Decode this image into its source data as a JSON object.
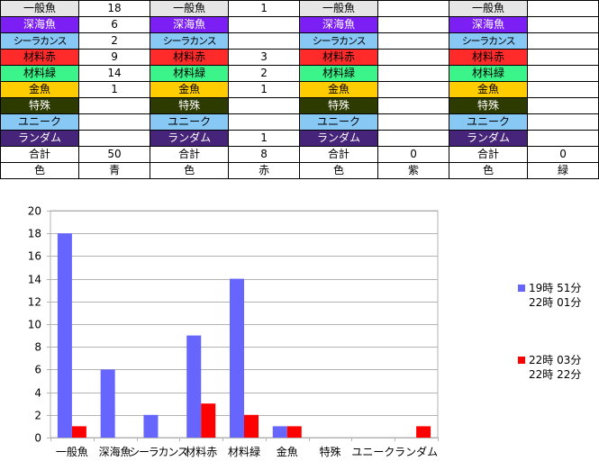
{
  "table": {
    "groups": [
      {
        "total_label": "合計",
        "total": "50",
        "color_label": "色",
        "color": "青",
        "values": [
          "18",
          "6",
          "2",
          "9",
          "14",
          "1",
          "",
          "",
          ""
        ]
      },
      {
        "total_label": "合計",
        "total": "8",
        "color_label": "色",
        "color": "赤",
        "values": [
          "1",
          "",
          "",
          "3",
          "2",
          "1",
          "",
          "",
          "1"
        ]
      },
      {
        "total_label": "合計",
        "total": "0",
        "color_label": "色",
        "color": "紫",
        "values": [
          "",
          "",
          "",
          "",
          "",
          "",
          "",
          "",
          ""
        ]
      },
      {
        "total_label": "合計",
        "total": "0",
        "color_label": "色",
        "color": "緑",
        "values": [
          "",
          "",
          "",
          "",
          "",
          "",
          "",
          "",
          ""
        ]
      }
    ],
    "categories": [
      {
        "label": "一般魚",
        "bg": "#e6e6e6",
        "fg": "#000000"
      },
      {
        "label": "深海魚",
        "bg": "#7b1ff5",
        "fg": "#ffffff"
      },
      {
        "label": "シーラカンス",
        "bg": "#87c8f5",
        "fg": "#000000"
      },
      {
        "label": "材料赤",
        "bg": "#ff2a2a",
        "fg": "#000000"
      },
      {
        "label": "材料緑",
        "bg": "#3cf58a",
        "fg": "#000000"
      },
      {
        "label": "金魚",
        "bg": "#ffcc00",
        "fg": "#000000"
      },
      {
        "label": "特殊",
        "bg": "#2d3a00",
        "fg": "#ffffff"
      },
      {
        "label": "ユニーク",
        "bg": "#87c8f5",
        "fg": "#000000"
      },
      {
        "label": "ランダム",
        "bg": "#45247a",
        "fg": "#ffffff"
      }
    ]
  },
  "chart_data": {
    "type": "bar",
    "categories": [
      "一般魚",
      "深海魚",
      "シーラカンス",
      "材料赤",
      "材料緑",
      "金魚",
      "特殊",
      "ユニーク",
      "ランダム"
    ],
    "series": [
      {
        "name": "19時 51分\n22時 01分",
        "color": "#6666ff",
        "values": [
          18,
          6,
          2,
          9,
          14,
          1,
          0,
          0,
          0
        ]
      },
      {
        "name": "22時 03分\n22時 22分",
        "color": "#ff0000",
        "values": [
          1,
          0,
          0,
          3,
          2,
          1,
          0,
          0,
          1
        ]
      }
    ],
    "ylim": [
      0,
      20
    ],
    "yticks": [
      "0",
      "2",
      "4",
      "6",
      "8",
      "10",
      "12",
      "14",
      "16",
      "18",
      "20"
    ],
    "grid": true,
    "legend": "right"
  }
}
